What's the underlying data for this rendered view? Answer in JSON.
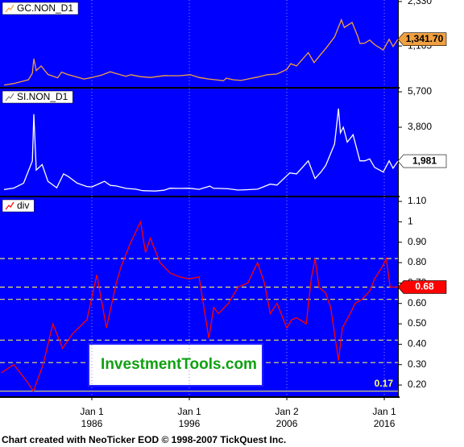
{
  "x_axis": {
    "xlim": [
      1976.58,
      2017.4
    ],
    "xticks": [
      {
        "value": 1986,
        "label": "Jan 1 1986"
      },
      {
        "value": 1996,
        "label": "Jan 1 1996"
      },
      {
        "value": 2006,
        "label": "Jan 2 2006"
      },
      {
        "value": 2016,
        "label": "Jan 1 2016"
      }
    ]
  },
  "chart_data": [
    {
      "type": "line",
      "series": [
        {
          "name": "GC.NON_D1",
          "color": "#f0a040",
          "values": [
            140,
            180,
            280,
            450,
            830,
            520,
            640,
            420,
            330,
            480,
            420,
            350,
            300,
            340,
            400,
            490,
            440,
            370,
            410,
            360,
            340,
            390,
            385,
            385,
            410,
            340,
            300,
            255,
            320,
            280,
            260,
            300,
            350,
            410,
            430,
            550,
            700,
            640,
            990,
            730,
            950,
            1100,
            1400,
            1850,
            1650,
            1780,
            1400,
            1230,
            1240,
            1320,
            1200,
            1060,
            1340,
            1150,
            1341.7
          ]
        }
      ],
      "x": [
        1977,
        1978,
        1979.5,
        1979.9,
        1980.05,
        1980.3,
        1980.8,
        1981.5,
        1982.5,
        1982.9,
        1983.5,
        1984.5,
        1985.2,
        1986,
        1987,
        1987.9,
        1988.5,
        1989.5,
        1990,
        1991,
        1992,
        1993.5,
        1994,
        1995,
        1996.1,
        1997,
        1998,
        1999.5,
        1999.8,
        2000.5,
        2001.3,
        2002,
        2003,
        2004,
        2005,
        2006,
        2006.4,
        2007,
        2008.2,
        2008.8,
        2009.5,
        2010,
        2010.9,
        2011.6,
        2011.9,
        2012.7,
        2013.3,
        2013.5,
        2014,
        2014.5,
        2015,
        2015.9,
        2016.5,
        2016.9,
        2017.4
      ],
      "ylim": [
        90,
        2370
      ],
      "yticks": [
        {
          "value": 2330,
          "label": "2,330"
        },
        {
          "value": 1165,
          "label": "1,165"
        }
      ],
      "last_value": {
        "value": 1341.7,
        "label": "1,341.70",
        "text_color": "#000000"
      },
      "background": "#0000ff"
    },
    {
      "type": "line",
      "series": [
        {
          "name": "SI.NON_D1",
          "color": "#ffffff",
          "values": [
            460,
            540,
            800,
            2000,
            4500,
            1500,
            1800,
            900,
            550,
            1300,
            1150,
            800,
            620,
            600,
            900,
            680,
            650,
            520,
            480,
            400,
            380,
            420,
            530,
            520,
            530,
            470,
            640,
            520,
            520,
            500,
            430,
            450,
            480,
            750,
            700,
            1350,
            1300,
            2000,
            1050,
            1400,
            1750,
            2900,
            4800,
            3500,
            3800,
            3000,
            3400,
            2000,
            2000,
            2100,
            1650,
            1400,
            2000,
            1600,
            1981
          ]
        }
      ],
      "x": [
        1977,
        1978,
        1979,
        1979.9,
        1980.05,
        1980.3,
        1980.9,
        1981.5,
        1982.4,
        1983.1,
        1983.6,
        1984.5,
        1985.5,
        1986,
        1987.3,
        1987.9,
        1988.5,
        1989.5,
        1990.5,
        1991.2,
        1992.5,
        1993.4,
        1994,
        1995,
        1996,
        1997,
        1998.1,
        1998.5,
        1999,
        2000,
        2001,
        2002,
        2003,
        2004.3,
        2005,
        2006.3,
        2007,
        2008.2,
        2008.9,
        2009.5,
        2010,
        2010.9,
        2011.3,
        2011.5,
        2011.8,
        2012.2,
        2012.8,
        2013.5,
        2014,
        2014.5,
        2015,
        2015.9,
        2016.5,
        2016.9,
        2017.4
      ],
      "ylim": [
        128,
        5873
      ],
      "yticks": [
        {
          "value": 5700,
          "label": "5,700"
        },
        {
          "value": 3800,
          "label": "3,800"
        }
      ],
      "last_value": {
        "value": 1981,
        "label": "1,981",
        "text_color": "#000000"
      },
      "background": "#0000ff"
    },
    {
      "type": "line",
      "series": [
        {
          "name": "div",
          "color": "#ff0000",
          "values": [
            0.26,
            0.3,
            0.22,
            0.17,
            0.3,
            0.5,
            0.38,
            0.45,
            0.52,
            0.74,
            0.48,
            0.7,
            0.78,
            0.9,
            1,
            0.85,
            0.92,
            0.8,
            0.75,
            0.73,
            0.72,
            0.73,
            0.43,
            0.58,
            0.55,
            0.6,
            0.68,
            0.7,
            0.8,
            0.7,
            0.55,
            0.6,
            0.48,
            0.52,
            0.53,
            0.5,
            0.72,
            0.82,
            0.68,
            0.65,
            0.58,
            0.32,
            0.48,
            0.55,
            0.6,
            0.62,
            0.66,
            0.72,
            0.78,
            0.82,
            0.68,
            0.68
          ]
        }
      ],
      "x": [
        1976.7,
        1978,
        1979.3,
        1980,
        1981,
        1982,
        1983,
        1984,
        1985.5,
        1986.5,
        1987.5,
        1988.5,
        1989,
        1990,
        1991,
        1991.5,
        1992,
        1993,
        1994,
        1995,
        1996,
        1997,
        1998,
        1998.5,
        1999,
        2000,
        2001,
        2002,
        2003,
        2003.7,
        2004.3,
        2005,
        2006,
        2006.5,
        2007,
        2008,
        2008.5,
        2008.9,
        2009.3,
        2010,
        2010.5,
        2011.3,
        2011.7,
        2012.5,
        2013,
        2013.7,
        2014.5,
        2015,
        2015.8,
        2016.2,
        2016.6,
        2017.4
      ],
      "ylim": [
        0.145,
        1.12
      ],
      "yticks": [
        {
          "value": 1.1,
          "label": "1.10"
        },
        1,
        {
          "value": 0.9,
          "label": "0.90"
        },
        {
          "value": 0.8,
          "label": "0.80"
        },
        {
          "value": 0.7,
          "label": "0.70"
        },
        {
          "value": 0.6,
          "label": "0.60"
        },
        {
          "value": 0.5,
          "label": "0.50"
        },
        {
          "value": 0.4,
          "label": "0.40"
        },
        {
          "value": 0.3,
          "label": "0.30"
        },
        {
          "value": 0.2,
          "label": "0.20"
        }
      ],
      "last_value": {
        "value": 0.68,
        "label": "0.68",
        "text_color": "#ffffff"
      },
      "reference_lines": [
        0.82,
        0.68,
        0.62,
        0.42,
        0.31
      ],
      "floor_line": 0.17,
      "annotation": "InvestmentTools.com",
      "background": "#0000ff"
    }
  ],
  "footer": "Chart created with NeoTicker EOD © 1998-2007 TickQuest Inc."
}
